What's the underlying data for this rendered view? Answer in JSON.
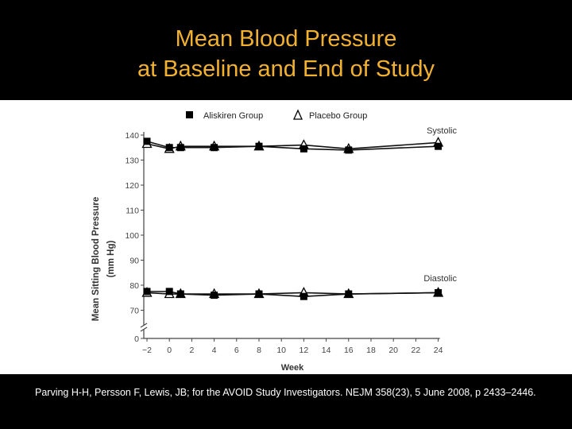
{
  "slide": {
    "title_line1": "Mean Blood Pressure",
    "title_line2": "at Baseline and End of Study",
    "citation": "Parving H-H,  Persson F,  Lewis, JB; for the AVOID Study Investigators. NEJM 358(23), 5 June 2008, p 2433–2446."
  },
  "chart_data": {
    "type": "line",
    "ylabel_line1": "Mean Sitting Blood Pressure",
    "ylabel_line2": "(mm Hg)",
    "xlabel": "Week",
    "legend_position": "top",
    "x_ticks": [
      -2,
      0,
      2,
      4,
      6,
      8,
      10,
      12,
      14,
      16,
      18,
      20,
      22,
      24
    ],
    "y_ticks": [
      0,
      70,
      80,
      90,
      100,
      110,
      120,
      130,
      140
    ],
    "y_axis_break": true,
    "grid": false,
    "labels": {
      "systolic": "Systolic",
      "diastolic": "Diastolic"
    },
    "series": [
      {
        "name": "Aliskiren Group",
        "measure": "Systolic",
        "marker": "filled-square",
        "x": [
          -2,
          0,
          1,
          4,
          8,
          12,
          16,
          24
        ],
        "y": [
          137.5,
          135,
          135,
          135,
          135.5,
          134.5,
          134,
          135.5
        ]
      },
      {
        "name": "Placebo Group",
        "measure": "Systolic",
        "marker": "open-triangle",
        "x": [
          -2,
          0,
          1,
          4,
          8,
          12,
          16,
          24
        ],
        "y": [
          136.5,
          134.5,
          135.5,
          135.5,
          135.5,
          136,
          134.5,
          137
        ]
      },
      {
        "name": "Aliskiren Group",
        "measure": "Diastolic",
        "marker": "filled-square",
        "x": [
          -2,
          0,
          1,
          4,
          8,
          12,
          16,
          24
        ],
        "y": [
          77.5,
          77.5,
          76.5,
          76,
          76.5,
          75.5,
          76.5,
          77
        ]
      },
      {
        "name": "Placebo Group",
        "measure": "Diastolic",
        "marker": "open-triangle",
        "x": [
          -2,
          0,
          1,
          4,
          8,
          12,
          16,
          24
        ],
        "y": [
          77,
          76.5,
          76.5,
          76.5,
          76.5,
          77,
          76.5,
          77
        ]
      }
    ],
    "legend": [
      {
        "label": "Aliskiren Group",
        "marker": "filled-square"
      },
      {
        "label": "Placebo Group",
        "marker": "open-triangle"
      }
    ]
  }
}
